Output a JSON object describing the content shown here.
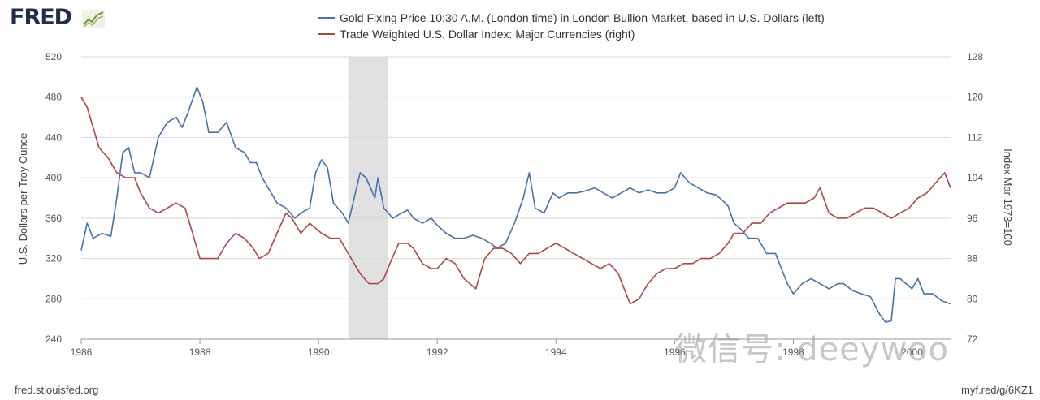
{
  "brand": {
    "logo_text": "FRED"
  },
  "footer": {
    "source_url": "fred.stlouisfed.org",
    "short_link": "myf.red/g/6KZ1"
  },
  "watermark": {
    "text": "微信号: deeywoo"
  },
  "colors": {
    "gold": "#4572a7",
    "usd": "#aa4643",
    "recession": "#e1e1e1",
    "grid": "#d8d8d8"
  },
  "chart_data": {
    "type": "line",
    "title": "",
    "xlabel": "",
    "ylabel_left": "U.S. Dollars per Troy Ounce",
    "ylabel_right": "Index Mar 1973=100",
    "xlim": [
      1986.0,
      2000.65
    ],
    "ylim_left": [
      240,
      520
    ],
    "ylim_right": [
      72,
      128
    ],
    "x_ticks": [
      1986,
      1988,
      1990,
      1992,
      1994,
      1996,
      1998,
      2000
    ],
    "y_ticks_left": [
      240,
      280,
      320,
      360,
      400,
      440,
      480,
      520
    ],
    "y_ticks_right": [
      72,
      80,
      88,
      96,
      104,
      112,
      120,
      128
    ],
    "grid": "horizontal",
    "legend_position": "top",
    "recession": {
      "start": 1990.5,
      "end": 1991.17
    },
    "series": [
      {
        "name": "Gold Fixing Price 10:30 A.M. (London time) in London Bullion Market, based in U.S. Dollars (left)",
        "axis": "left",
        "points": [
          [
            1986.0,
            328
          ],
          [
            1986.1,
            355
          ],
          [
            1986.2,
            340
          ],
          [
            1986.35,
            345
          ],
          [
            1986.5,
            342
          ],
          [
            1986.6,
            380
          ],
          [
            1986.7,
            425
          ],
          [
            1986.8,
            430
          ],
          [
            1986.9,
            405
          ],
          [
            1987.0,
            405
          ],
          [
            1987.15,
            400
          ],
          [
            1987.3,
            440
          ],
          [
            1987.45,
            455
          ],
          [
            1987.6,
            460
          ],
          [
            1987.7,
            450
          ],
          [
            1987.8,
            465
          ],
          [
            1987.95,
            490
          ],
          [
            1988.05,
            475
          ],
          [
            1988.15,
            445
          ],
          [
            1988.3,
            445
          ],
          [
            1988.45,
            455
          ],
          [
            1988.6,
            430
          ],
          [
            1988.75,
            425
          ],
          [
            1988.85,
            415
          ],
          [
            1988.95,
            415
          ],
          [
            1989.05,
            400
          ],
          [
            1989.15,
            390
          ],
          [
            1989.3,
            375
          ],
          [
            1989.45,
            370
          ],
          [
            1989.6,
            360
          ],
          [
            1989.7,
            365
          ],
          [
            1989.85,
            370
          ],
          [
            1989.95,
            405
          ],
          [
            1990.05,
            418
          ],
          [
            1990.15,
            410
          ],
          [
            1990.25,
            375
          ],
          [
            1990.4,
            365
          ],
          [
            1990.5,
            355
          ],
          [
            1990.6,
            380
          ],
          [
            1990.7,
            405
          ],
          [
            1990.8,
            400
          ],
          [
            1990.95,
            380
          ],
          [
            1991.0,
            400
          ],
          [
            1991.1,
            370
          ],
          [
            1991.25,
            360
          ],
          [
            1991.4,
            365
          ],
          [
            1991.5,
            368
          ],
          [
            1991.6,
            360
          ],
          [
            1991.75,
            355
          ],
          [
            1991.9,
            360
          ],
          [
            1992.0,
            353
          ],
          [
            1992.15,
            345
          ],
          [
            1992.3,
            340
          ],
          [
            1992.45,
            340
          ],
          [
            1992.6,
            343
          ],
          [
            1992.75,
            340
          ],
          [
            1992.9,
            335
          ],
          [
            1993.0,
            330
          ],
          [
            1993.15,
            335
          ],
          [
            1993.3,
            355
          ],
          [
            1993.45,
            380
          ],
          [
            1993.55,
            405
          ],
          [
            1993.65,
            370
          ],
          [
            1993.8,
            365
          ],
          [
            1993.95,
            385
          ],
          [
            1994.05,
            380
          ],
          [
            1994.2,
            385
          ],
          [
            1994.35,
            385
          ],
          [
            1994.5,
            387
          ],
          [
            1994.65,
            390
          ],
          [
            1994.8,
            385
          ],
          [
            1994.95,
            380
          ],
          [
            1995.1,
            385
          ],
          [
            1995.25,
            390
          ],
          [
            1995.4,
            385
          ],
          [
            1995.55,
            388
          ],
          [
            1995.7,
            385
          ],
          [
            1995.85,
            385
          ],
          [
            1996.0,
            390
          ],
          [
            1996.1,
            405
          ],
          [
            1996.25,
            395
          ],
          [
            1996.4,
            390
          ],
          [
            1996.55,
            385
          ],
          [
            1996.7,
            383
          ],
          [
            1996.8,
            378
          ],
          [
            1996.9,
            372
          ],
          [
            1997.0,
            355
          ],
          [
            1997.1,
            350
          ],
          [
            1997.25,
            340
          ],
          [
            1997.4,
            340
          ],
          [
            1997.55,
            325
          ],
          [
            1997.7,
            325
          ],
          [
            1997.8,
            310
          ],
          [
            1997.9,
            295
          ],
          [
            1998.0,
            285
          ],
          [
            1998.15,
            295
          ],
          [
            1998.3,
            300
          ],
          [
            1998.45,
            295
          ],
          [
            1998.6,
            290
          ],
          [
            1998.75,
            295
          ],
          [
            1998.85,
            295
          ],
          [
            1999.0,
            288
          ],
          [
            1999.15,
            285
          ],
          [
            1999.3,
            282
          ],
          [
            1999.45,
            265
          ],
          [
            1999.55,
            257
          ],
          [
            1999.65,
            258
          ],
          [
            1999.72,
            300
          ],
          [
            1999.8,
            300
          ],
          [
            1999.9,
            295
          ],
          [
            2000.0,
            290
          ],
          [
            2000.1,
            300
          ],
          [
            2000.2,
            285
          ],
          [
            2000.35,
            285
          ],
          [
            2000.5,
            278
          ],
          [
            2000.65,
            275
          ]
        ]
      },
      {
        "name": "Trade Weighted U.S. Dollar Index: Major Currencies (right)",
        "axis": "right",
        "points": [
          [
            1986.0,
            120
          ],
          [
            1986.1,
            118
          ],
          [
            1986.2,
            114
          ],
          [
            1986.3,
            110
          ],
          [
            1986.45,
            108
          ],
          [
            1986.6,
            105
          ],
          [
            1986.75,
            104
          ],
          [
            1986.9,
            104
          ],
          [
            1987.0,
            101
          ],
          [
            1987.15,
            98
          ],
          [
            1987.3,
            97
          ],
          [
            1987.45,
            98
          ],
          [
            1987.6,
            99
          ],
          [
            1987.75,
            98
          ],
          [
            1987.9,
            92
          ],
          [
            1988.0,
            88
          ],
          [
            1988.15,
            88
          ],
          [
            1988.3,
            88
          ],
          [
            1988.45,
            91
          ],
          [
            1988.6,
            93
          ],
          [
            1988.75,
            92
          ],
          [
            1988.9,
            90
          ],
          [
            1989.0,
            88
          ],
          [
            1989.15,
            89
          ],
          [
            1989.3,
            93
          ],
          [
            1989.45,
            97
          ],
          [
            1989.55,
            96
          ],
          [
            1989.7,
            93
          ],
          [
            1989.85,
            95
          ],
          [
            1989.95,
            94
          ],
          [
            1990.05,
            93
          ],
          [
            1990.2,
            92
          ],
          [
            1990.35,
            92
          ],
          [
            1990.45,
            90
          ],
          [
            1990.55,
            88
          ],
          [
            1990.7,
            85
          ],
          [
            1990.85,
            83
          ],
          [
            1991.0,
            83
          ],
          [
            1991.1,
            84
          ],
          [
            1991.2,
            87
          ],
          [
            1991.35,
            91
          ],
          [
            1991.5,
            91
          ],
          [
            1991.6,
            90
          ],
          [
            1991.75,
            87
          ],
          [
            1991.9,
            86
          ],
          [
            1992.0,
            86
          ],
          [
            1992.15,
            88
          ],
          [
            1992.3,
            87
          ],
          [
            1992.45,
            84
          ],
          [
            1992.55,
            83
          ],
          [
            1992.65,
            82
          ],
          [
            1992.8,
            88
          ],
          [
            1992.95,
            90
          ],
          [
            1993.1,
            90
          ],
          [
            1993.25,
            89
          ],
          [
            1993.4,
            87
          ],
          [
            1993.55,
            89
          ],
          [
            1993.7,
            89
          ],
          [
            1993.85,
            90
          ],
          [
            1994.0,
            91
          ],
          [
            1994.15,
            90
          ],
          [
            1994.3,
            89
          ],
          [
            1994.45,
            88
          ],
          [
            1994.6,
            87
          ],
          [
            1994.75,
            86
          ],
          [
            1994.9,
            87
          ],
          [
            1995.05,
            85
          ],
          [
            1995.15,
            82
          ],
          [
            1995.25,
            79
          ],
          [
            1995.4,
            80
          ],
          [
            1995.55,
            83
          ],
          [
            1995.7,
            85
          ],
          [
            1995.85,
            86
          ],
          [
            1996.0,
            86
          ],
          [
            1996.15,
            87
          ],
          [
            1996.3,
            87
          ],
          [
            1996.45,
            88
          ],
          [
            1996.6,
            88
          ],
          [
            1996.75,
            89
          ],
          [
            1996.9,
            91
          ],
          [
            1997.0,
            93
          ],
          [
            1997.15,
            93
          ],
          [
            1997.3,
            95
          ],
          [
            1997.45,
            95
          ],
          [
            1997.6,
            97
          ],
          [
            1997.75,
            98
          ],
          [
            1997.9,
            99
          ],
          [
            1998.05,
            99
          ],
          [
            1998.2,
            99
          ],
          [
            1998.35,
            100
          ],
          [
            1998.45,
            102
          ],
          [
            1998.6,
            97
          ],
          [
            1998.75,
            96
          ],
          [
            1998.9,
            96
          ],
          [
            1999.05,
            97
          ],
          [
            1999.2,
            98
          ],
          [
            1999.35,
            98
          ],
          [
            1999.5,
            97
          ],
          [
            1999.65,
            96
          ],
          [
            1999.8,
            97
          ],
          [
            1999.95,
            98
          ],
          [
            2000.1,
            100
          ],
          [
            2000.25,
            101
          ],
          [
            2000.4,
            103
          ],
          [
            2000.55,
            105
          ],
          [
            2000.65,
            102
          ]
        ]
      }
    ]
  }
}
